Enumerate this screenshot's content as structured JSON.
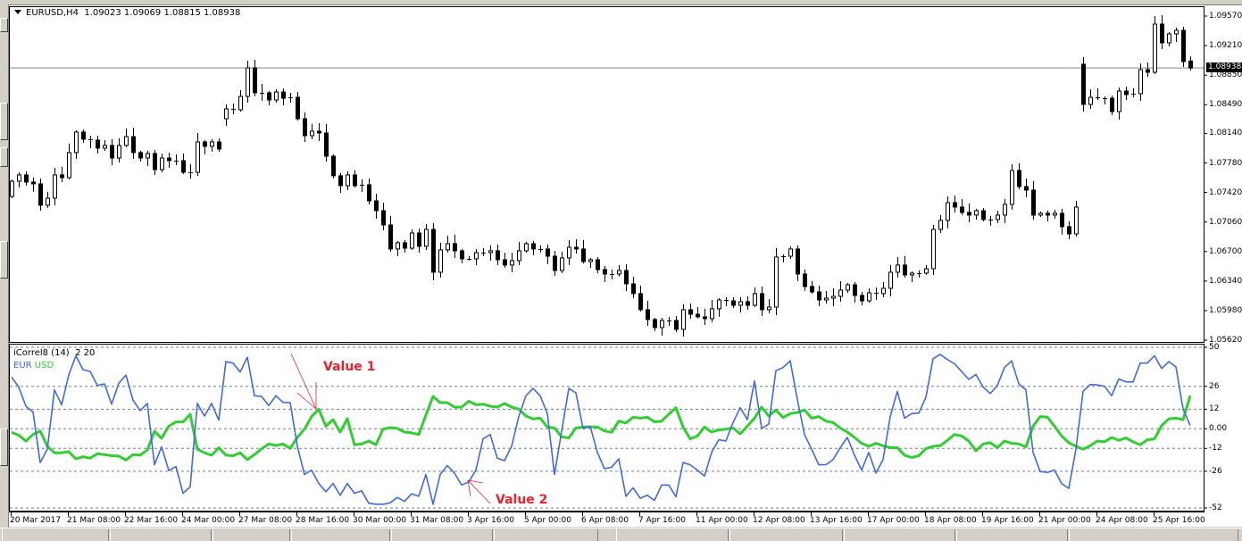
{
  "header": {
    "symbol": "EURUSD,H4",
    "open": "1.09023",
    "high": "1.09069",
    "low": "1.08815",
    "close": "1.08938"
  },
  "colors": {
    "eur": "#4169e1",
    "usd": "#32cd32",
    "annotation": "#e8212b",
    "grid": "#6e7f96",
    "current_line": "#7a8a9a"
  },
  "price_axis": {
    "labels": [
      "1.09570",
      "1.09210",
      "1.08850",
      "1.08490",
      "1.08140",
      "1.07780",
      "1.07420",
      "1.07060",
      "1.06700",
      "1.06340",
      "1.05980",
      "1.05620"
    ],
    "current_price": "1.08938"
  },
  "candles": {
    "first_open": 1.07372,
    "gap_opens": {
      "30": 1.08319,
      "150": 1.08983,
      "165": 1.09023
    },
    "closes": [
      1.07557,
      1.07634,
      1.07547,
      1.07525,
      1.07264,
      1.07351,
      1.07634,
      1.07601,
      1.07906,
      1.08156,
      1.08069,
      1.08058,
      1.0796,
      1.07993,
      1.0784,
      1.07993,
      1.08101,
      1.07906,
      1.0784,
      1.07895,
      1.07699,
      1.0784,
      1.07808,
      1.07808,
      1.07666,
      1.07666,
      1.08036,
      1.07982,
      1.08036,
      1.07949,
      1.08439,
      1.08428,
      1.08591,
      1.08939,
      1.08635,
      1.08635,
      1.08547,
      1.08645,
      1.08569,
      1.0858,
      1.08319,
      1.08112,
      1.08167,
      1.08145,
      1.07862,
      1.07623,
      1.07503,
      1.07634,
      1.07503,
      1.07514,
      1.07318,
      1.07198,
      1.07024,
      1.06731,
      1.06807,
      1.06741,
      1.06926,
      1.06763,
      1.0697,
      1.06448,
      1.0672,
      1.06796,
      1.06709,
      1.06611,
      1.06611,
      1.06687,
      1.06687,
      1.06709,
      1.066,
      1.06535,
      1.06589,
      1.06709,
      1.06796,
      1.06731,
      1.06731,
      1.06643,
      1.06469,
      1.06622,
      1.06752,
      1.06731,
      1.06578,
      1.066,
      1.0648,
      1.06426,
      1.06426,
      1.06469,
      1.06306,
      1.06187,
      1.05991,
      1.05871,
      1.05773,
      1.0586,
      1.0586,
      1.05751,
      1.05991,
      1.05936,
      1.05904,
      1.05882,
      1.06002,
      1.0611,
      1.06099,
      1.06045,
      1.06089,
      1.06045,
      1.06187,
      1.05991,
      1.06023,
      1.06633,
      1.06643,
      1.06731,
      1.06426,
      1.06274,
      1.06208,
      1.0611,
      1.06132,
      1.06154,
      1.0623,
      1.06295,
      1.06165,
      1.06099,
      1.06197,
      1.06187,
      1.06252,
      1.06448,
      1.06535,
      1.06415,
      1.06437,
      1.06437,
      1.06491,
      1.0697,
      1.07079,
      1.07296,
      1.07242,
      1.07177,
      1.07144,
      1.07198,
      1.0709,
      1.0709,
      1.07144,
      1.07275,
      1.07688,
      1.07492,
      1.07449,
      1.07144,
      1.07166,
      1.07144,
      1.07166,
      1.07003,
      1.06915,
      1.07242,
      1.08493,
      1.0858,
      1.08569,
      1.08569,
      1.08406,
      1.08656,
      1.08613,
      1.08624,
      1.08917,
      1.08885,
      1.09472,
      1.09244,
      1.09353,
      1.09396,
      1.09015,
      1.08938
    ]
  },
  "indicator": {
    "title": "iCorrel8 (14)  2 20",
    "legend": [
      {
        "name": "EUR"
      },
      {
        "name": "USD"
      }
    ],
    "levels": [
      "50",
      "26",
      "12",
      "0.00",
      "-12",
      "-26",
      "-52"
    ],
    "eur": [
      31.6,
      25.6,
      13.8,
      10.2,
      -20.7,
      -12.5,
      23.8,
      14.7,
      32.9,
      44.7,
      36.2,
      35.1,
      26.5,
      27.5,
      15.1,
      27.8,
      32.9,
      17.5,
      11.1,
      15.5,
      -22,
      -11.1,
      -25.6,
      -23.1,
      -39.5,
      -35.5,
      15.6,
      7.8,
      15.5,
      5.3,
      41.1,
      40.2,
      34.7,
      43.8,
      20.2,
      19.8,
      14.2,
      20.2,
      16.2,
      16,
      -10.7,
      -28,
      -25.3,
      -33.5,
      -38.5,
      -33.5,
      -40.7,
      -33.5,
      -39.5,
      -38,
      -45.6,
      -46.2,
      -46.2,
      -45.3,
      -42,
      -44.4,
      -39.8,
      -41.3,
      -28,
      -46.2,
      -28,
      -22.5,
      -27.1,
      -34.4,
      -32.5,
      -25.3,
      -6.2,
      -3.5,
      -18,
      -19.5,
      -10.7,
      7.5,
      20.2,
      24.7,
      20.2,
      9.3,
      -28,
      -1.6,
      24.7,
      22,
      0.2,
      1.6,
      -14.4,
      -24.4,
      -23.5,
      -18.4,
      -41.3,
      -36.2,
      -42.5,
      -40.7,
      -43.8,
      -34.4,
      -34.4,
      -41.6,
      -20.7,
      -22,
      -25.3,
      -28.9,
      -14.4,
      -6.7,
      -7.5,
      3.8,
      12.9,
      5.6,
      29.3,
      0.2,
      2.9,
      35.6,
      37.5,
      41.6,
      18,
      -3.5,
      -12.5,
      -22,
      -22,
      -18.9,
      -11.6,
      -5.3,
      -16.2,
      -25.3,
      -14.4,
      -27.1,
      -18.9,
      7.5,
      22.9,
      6.5,
      9.3,
      9.6,
      19.3,
      42.9,
      45.6,
      42.4,
      39.8,
      35.1,
      30.2,
      33.3,
      25.6,
      21.6,
      26.5,
      37.5,
      41.6,
      27.5,
      23.8,
      -14.4,
      -26.2,
      -26.7,
      -25.3,
      -33.5,
      -36.5,
      -12.5,
      22.9,
      27.1,
      26.9,
      26,
      20.2,
      30.5,
      28.7,
      28.7,
      40.2,
      40.2,
      44.7,
      36.9,
      41.1,
      38,
      12,
      2
    ],
    "usd": [
      -2.2,
      -4,
      -7.5,
      -3.5,
      -1.3,
      -10.7,
      -14.7,
      -14.7,
      -14,
      -18.4,
      -17.1,
      -18,
      -15.3,
      -15.8,
      -16.5,
      -16.7,
      -19.1,
      -15.8,
      -16.2,
      -12.9,
      -1.6,
      -5.8,
      1.6,
      4.2,
      4.2,
      8.9,
      -12.5,
      -14.7,
      -16.2,
      -11.6,
      -16.2,
      -16.5,
      -14.7,
      -18.9,
      -15.8,
      -12.2,
      -9.3,
      -10.2,
      -9.3,
      -12,
      -5.3,
      -0.2,
      7.5,
      12,
      1.6,
      5.6,
      -2,
      6.2,
      -9.8,
      -9.3,
      -7.5,
      -9.8,
      -0.2,
      0.7,
      0.2,
      -2,
      -2.5,
      -3.5,
      8.4,
      19.8,
      16,
      16,
      13.3,
      13.3,
      16.9,
      14.7,
      15.1,
      13.8,
      13.3,
      15.5,
      13.3,
      12,
      7.8,
      6,
      6.5,
      1.1,
      0.5,
      -4.9,
      -5.6,
      0.5,
      1.1,
      1.1,
      1.1,
      -1.3,
      -2.2,
      4.7,
      3.5,
      7.1,
      6.5,
      7.1,
      4.2,
      4.7,
      8.9,
      12.9,
      1.1,
      -6.2,
      -4.4,
      1.1,
      -2,
      -0.7,
      -0.2,
      0.5,
      -3.1,
      1.6,
      6.5,
      13.3,
      7.8,
      11.5,
      6.9,
      9.3,
      10,
      11.5,
      6.5,
      7.5,
      4.7,
      3.8,
      0.5,
      -2,
      -5.3,
      -8.9,
      -10.7,
      -8.9,
      -10.4,
      -11.6,
      -11.6,
      -16.2,
      -17.6,
      -16.5,
      -12.2,
      -10.7,
      -10.4,
      -7.1,
      -3.5,
      -4.4,
      -7.5,
      -13.5,
      -9.3,
      -8.5,
      -11.6,
      -7.5,
      -8.9,
      -9.3,
      -11.1,
      1.6,
      7.5,
      7.1,
      1.6,
      -4.4,
      -8.5,
      -10.7,
      -12.5,
      -10.4,
      -7.5,
      -8,
      -5.3,
      -7.1,
      -5.6,
      -8,
      -9.8,
      -6.7,
      -6.2,
      2,
      6,
      6.5,
      5.6,
      20.2
    ]
  },
  "time_axis": {
    "labels": [
      "20 Mar 2017",
      "21 Mar 08:00",
      "22 Mar 16:00",
      "24 Mar 00:00",
      "27 Mar 08:00",
      "28 Mar 16:00",
      "30 Mar 00:00",
      "31 Mar 08:00",
      "3 Apr 16:00",
      "5 Apr 00:00",
      "6 Apr 08:00",
      "7 Apr 16:00",
      "11 Apr 00:00",
      "12 Apr 08:00",
      "13 Apr 16:00",
      "17 Apr 00:00",
      "18 Apr 08:00",
      "19 Apr 16:00",
      "21 Apr 00:00",
      "24 Apr 08:00",
      "25 Apr 16:00"
    ]
  },
  "annotations": {
    "value1": "Value 1",
    "value2": "Value 2"
  }
}
